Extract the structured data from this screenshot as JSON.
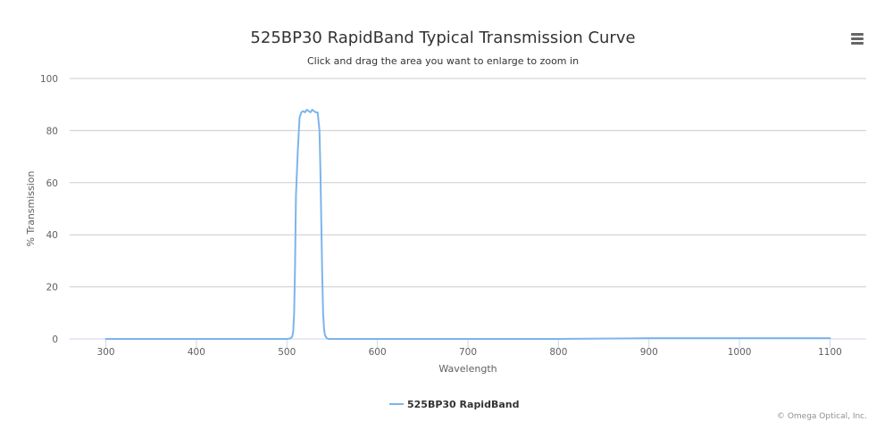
{
  "chart_data": {
    "type": "line",
    "title": "525BP30 RapidBand Typical Transmission Curve",
    "subtitle": "Click and drag the area you want to enlarge to zoom in",
    "xlabel": "Wavelength",
    "ylabel": "% Transmission",
    "xlim": [
      260,
      1140
    ],
    "ylim": [
      0,
      100
    ],
    "x_ticks": [
      300,
      400,
      500,
      600,
      700,
      800,
      900,
      1000,
      1100
    ],
    "y_ticks": [
      0,
      20,
      40,
      60,
      80,
      100
    ],
    "grid": "horizontal",
    "legend": "bottom-center",
    "series": [
      {
        "name": "525BP30 RapidBand",
        "color": "#7cb5ec",
        "x": [
          300,
          400,
          500,
          504,
          506,
          507,
          508,
          509,
          510,
          512,
          514,
          516,
          518,
          520,
          522,
          524,
          526,
          528,
          530,
          532,
          534,
          536,
          537,
          538,
          539,
          540,
          541,
          542,
          544,
          546,
          560,
          600,
          700,
          800,
          880,
          900,
          1000,
          1080,
          1100
        ],
        "y": [
          0,
          0,
          0,
          0.2,
          1,
          3,
          10,
          28,
          55,
          72,
          85,
          87,
          87.5,
          87,
          88,
          87.5,
          87,
          88,
          87.5,
          87,
          87,
          80,
          65,
          45,
          25,
          10,
          4,
          1.5,
          0.3,
          0,
          0,
          0,
          0,
          0,
          0.2,
          0.3,
          0.3,
          0.3,
          0.3
        ]
      }
    ]
  },
  "legend": {
    "label": "525BP30 RapidBand"
  },
  "credits": {
    "text": "© Omega Optical, Inc."
  },
  "menu": {
    "icon": "hamburger-menu-icon"
  }
}
